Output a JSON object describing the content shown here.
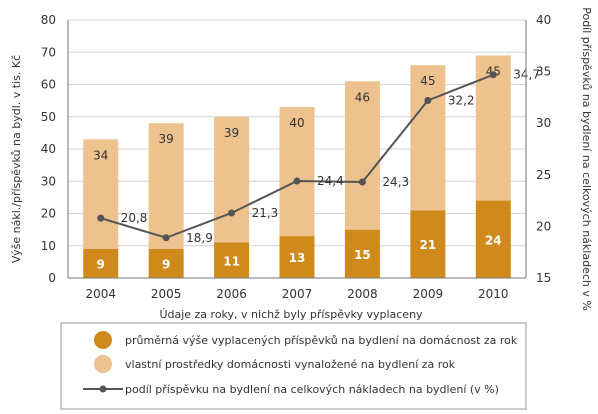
{
  "chart_data": {
    "type": "bar",
    "stacked": true,
    "categories": [
      "2004",
      "2005",
      "2006",
      "2007",
      "2008",
      "2009",
      "2010"
    ],
    "series": [
      {
        "name": "průměrná výše vyplacených příspěvků na bydlení na domácnost za rok",
        "values": [
          9,
          9,
          11,
          13,
          15,
          21,
          24
        ],
        "color": "#D08A1C",
        "axis": "left"
      },
      {
        "name": "vlastní prostředky domácnosti vynaložené na bydlení za rok",
        "values": [
          34,
          39,
          39,
          40,
          46,
          45,
          45
        ],
        "color": "#EDC28E",
        "axis": "left"
      },
      {
        "name": "podíl příspěvku na bydlení na celkových nákladech na bydlení (v %)",
        "type": "line",
        "axis": "right",
        "values": [
          20.8,
          18.9,
          21.3,
          24.4,
          24.3,
          32.2,
          34.7
        ],
        "labels": [
          "20,8",
          "18,9",
          "21,3",
          "24,4",
          "24,3",
          "32,2",
          "34,7"
        ],
        "color": "#555555"
      }
    ],
    "xlabel": "Údaje za roky, v nichž byly příspěvky vyplaceny",
    "ylabel": "Výše nákl./příspěvků na bydl. v tis. Kč",
    "y2label": "Podíl příspěvků na bydlení na celkových nákladech v %",
    "ylim": [
      0,
      80
    ],
    "yticks": [
      0,
      10,
      20,
      30,
      40,
      50,
      60,
      70,
      80
    ],
    "y2lim": [
      15,
      40
    ],
    "y2ticks": [
      15,
      20,
      25,
      30,
      35,
      40
    ],
    "grid": true,
    "legend_position": "bottom"
  }
}
